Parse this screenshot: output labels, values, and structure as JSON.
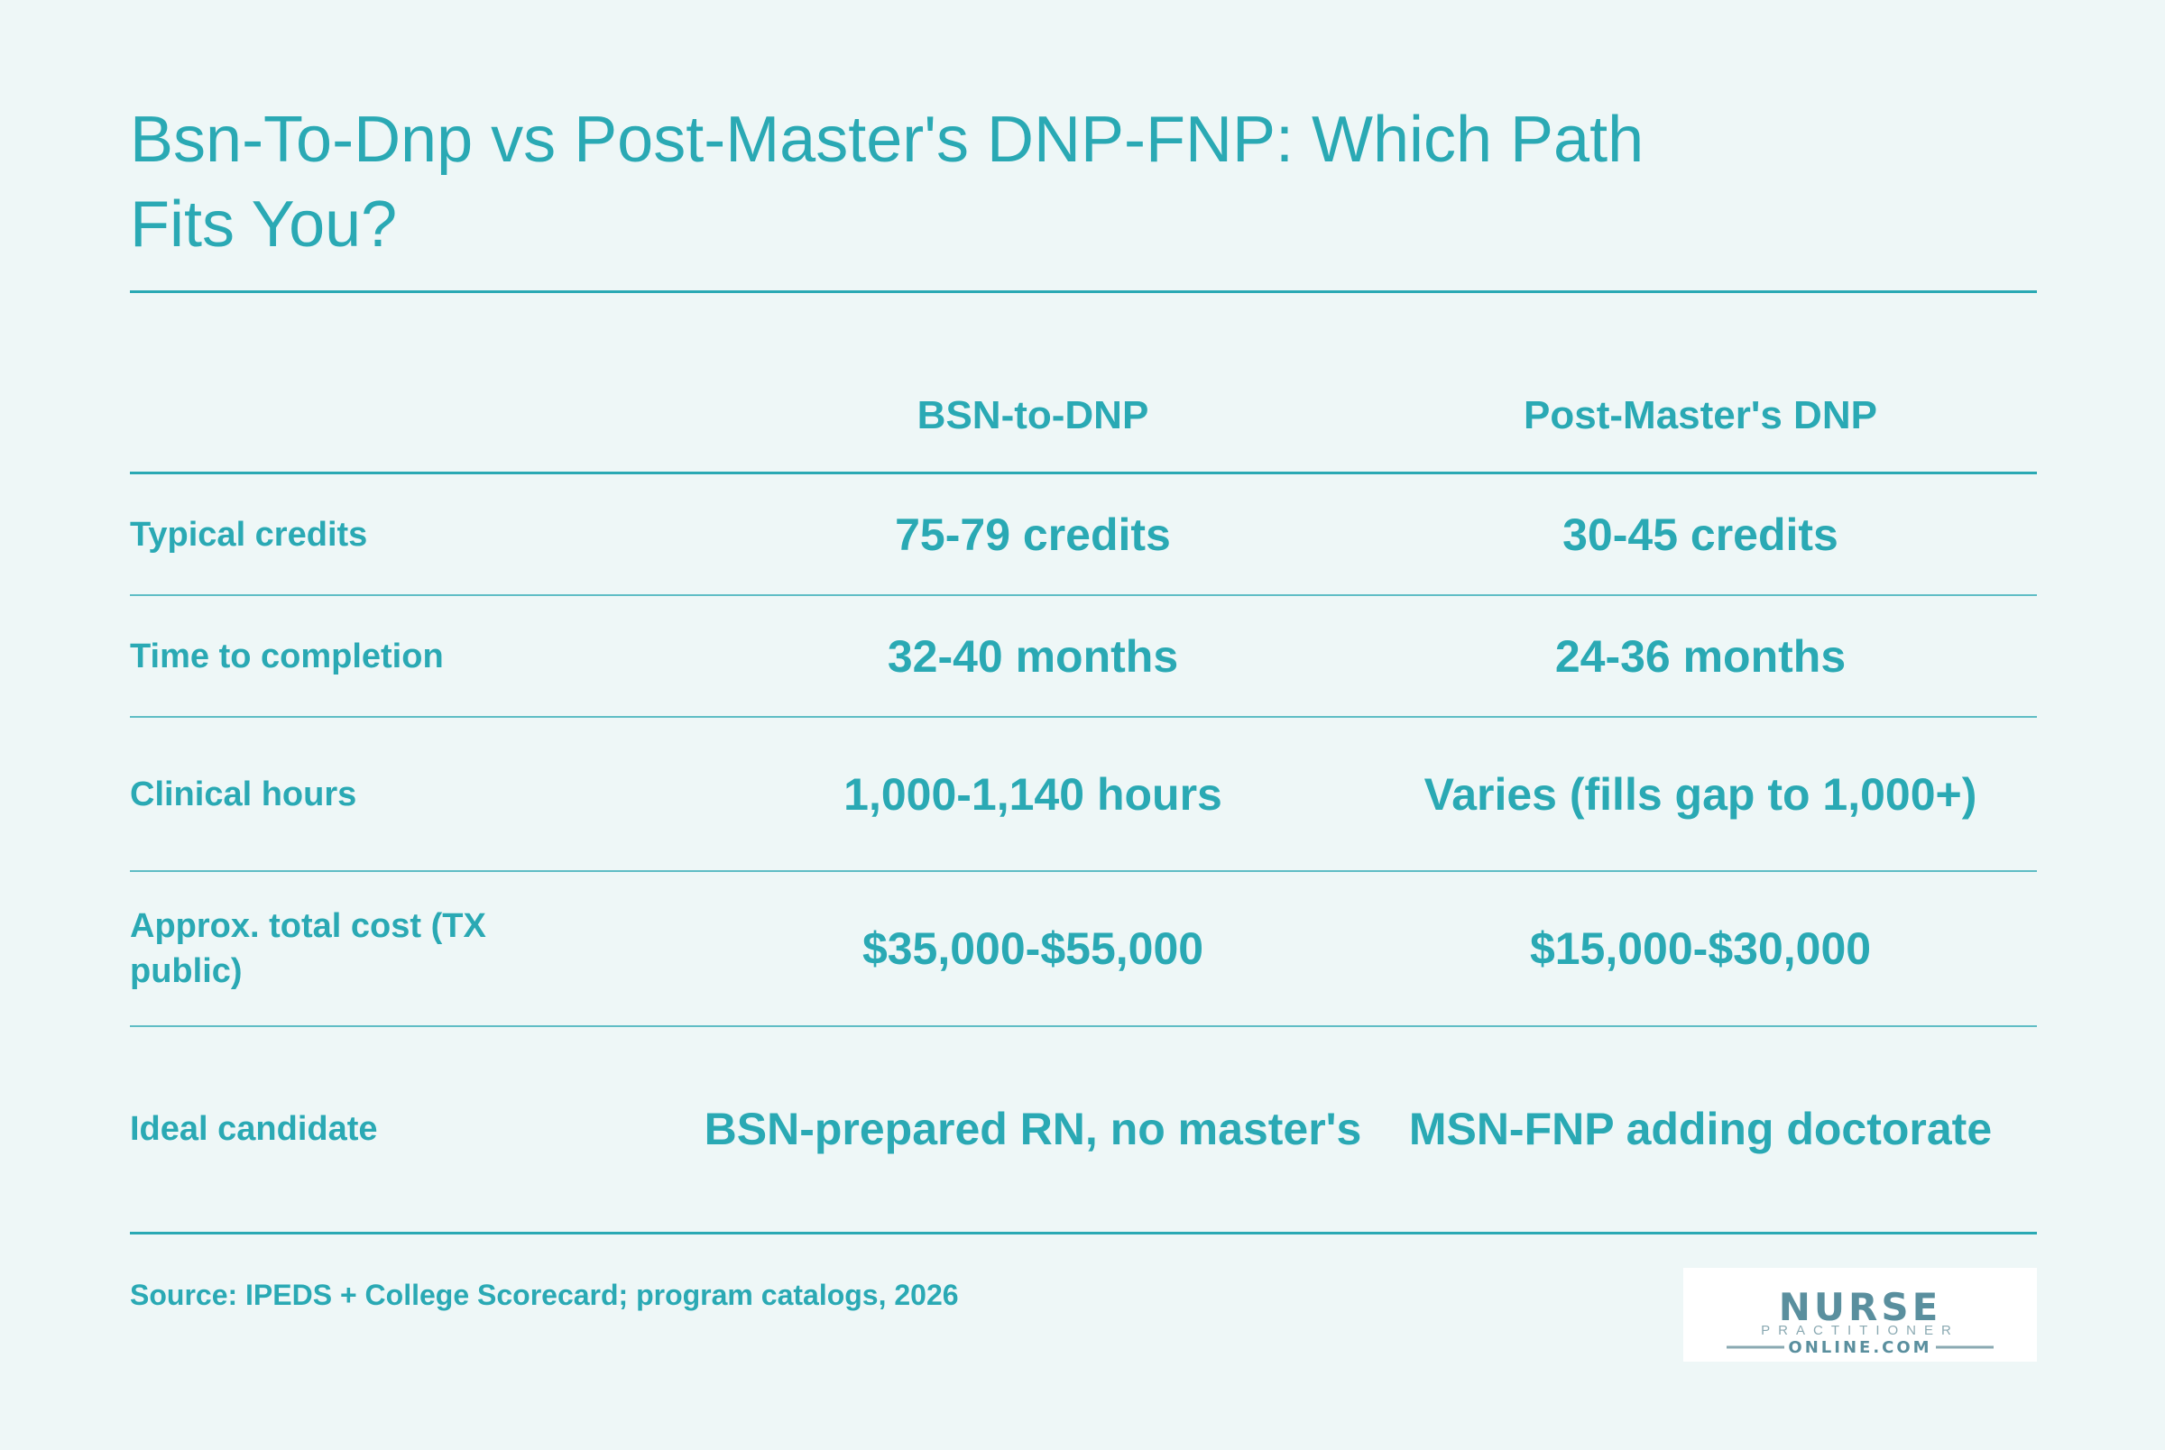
{
  "title": "Bsn-To-Dnp vs Post-Master's DNP-FNP: Which Path Fits You?",
  "chart_data": {
    "type": "table",
    "columns": [
      "",
      "BSN-to-DNP",
      "Post-Master's DNP"
    ],
    "rows": [
      {
        "label": "Typical credits",
        "values": [
          "75-79 credits",
          "30-45 credits"
        ]
      },
      {
        "label": "Time to completion",
        "values": [
          "32-40 months",
          "24-36 months"
        ]
      },
      {
        "label": "Clinical hours",
        "values": [
          "1,000-1,140 hours",
          "Varies (fills gap to 1,000+)"
        ]
      },
      {
        "label": "Approx. total cost (TX public)",
        "values": [
          "$35,000-$55,000",
          "$15,000-$30,000"
        ]
      },
      {
        "label": "Ideal candidate",
        "values": [
          "BSN-prepared RN, no master's",
          "MSN-FNP adding doctorate"
        ]
      }
    ]
  },
  "source": "Source: IPEDS + College Scorecard; program catalogs, 2026",
  "logo": {
    "line1": "NURSE",
    "line2": "PRACTITIONER",
    "line3": "ONLINE.COM"
  },
  "colors": {
    "background": "#eef7f7",
    "accent": "#2aa9b4",
    "logo_text": "#5a8f9e"
  }
}
